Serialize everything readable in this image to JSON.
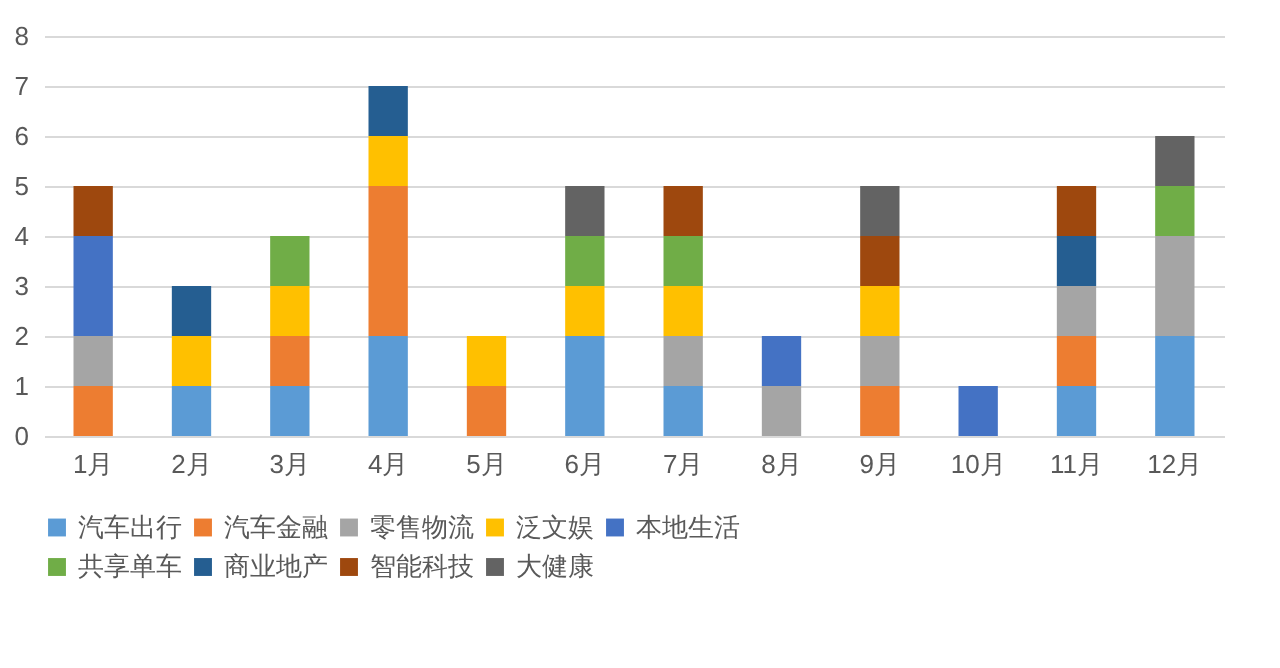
{
  "chart_data": {
    "type": "bar",
    "stacked": true,
    "categories": [
      "1月",
      "2月",
      "3月",
      "4月",
      "5月",
      "6月",
      "7月",
      "8月",
      "9月",
      "10月",
      "11月",
      "12月"
    ],
    "series": [
      {
        "name": "汽车出行",
        "color": "#5b9bd5",
        "values": [
          null,
          1,
          1,
          2,
          null,
          2,
          1,
          null,
          null,
          null,
          1,
          2
        ]
      },
      {
        "name": "汽车金融",
        "color": "#ed7d31",
        "values": [
          1,
          null,
          1,
          3,
          1,
          null,
          null,
          null,
          1,
          null,
          1,
          null
        ]
      },
      {
        "name": "零售物流",
        "color": "#a5a5a5",
        "values": [
          1,
          null,
          null,
          null,
          null,
          null,
          1,
          1,
          1,
          null,
          1,
          2
        ]
      },
      {
        "name": "泛文娱",
        "color": "#ffc000",
        "values": [
          null,
          1,
          1,
          1,
          1,
          1,
          1,
          null,
          1,
          null,
          null,
          null
        ]
      },
      {
        "name": "本地生活",
        "color": "#4472c4",
        "values": [
          2,
          null,
          null,
          null,
          null,
          null,
          null,
          1,
          null,
          1,
          null,
          null
        ]
      },
      {
        "name": "共享单车",
        "color": "#70ad47",
        "values": [
          null,
          null,
          1,
          null,
          null,
          1,
          1,
          null,
          null,
          null,
          null,
          1
        ]
      },
      {
        "name": "商业地产",
        "color": "#255e91",
        "values": [
          null,
          1,
          null,
          1,
          null,
          null,
          null,
          null,
          null,
          null,
          1,
          null
        ]
      },
      {
        "name": "智能科技",
        "color": "#9e480e",
        "values": [
          1,
          null,
          null,
          null,
          null,
          null,
          1,
          null,
          1,
          null,
          1,
          null
        ]
      },
      {
        "name": "大健康",
        "color": "#636363",
        "values": [
          null,
          null,
          null,
          null,
          null,
          1,
          null,
          null,
          1,
          null,
          null,
          1
        ]
      }
    ],
    "ylim": [
      0,
      8
    ],
    "yticks": [
      0,
      1,
      2,
      3,
      4,
      5,
      6,
      7,
      8
    ],
    "grid": "y",
    "legend": "bottom"
  }
}
